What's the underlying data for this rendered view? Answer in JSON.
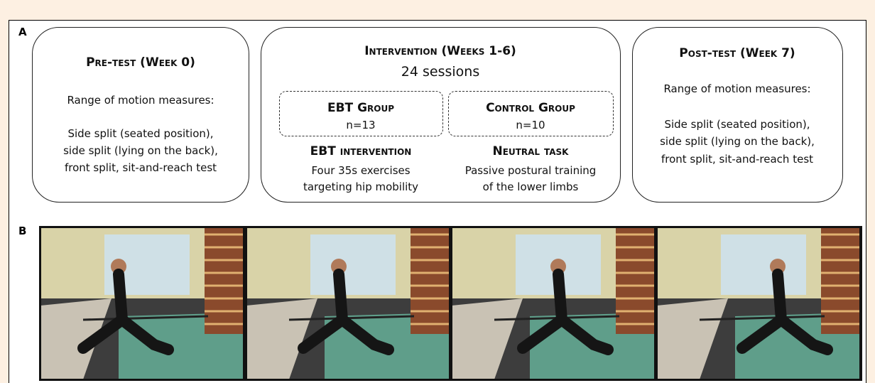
{
  "panel_a": {
    "label": "A",
    "pre_test": {
      "title": "Pre-test (Week 0)",
      "intro": "Range of motion measures:",
      "lines": [
        "Side split (seated position),",
        "side split (lying on the back),",
        "front split, sit-and-reach test"
      ]
    },
    "intervention": {
      "title": "Intervention (Weeks 1-6)",
      "subtitle": "24 sessions",
      "groups": [
        {
          "name": "EBT Group",
          "n": "n=13",
          "task": "EBT intervention",
          "lines": [
            "Four 35s exercises",
            "targeting hip mobility"
          ]
        },
        {
          "name": "Control Group",
          "n": "n=10",
          "task": "Neutral task",
          "lines": [
            "Passive postural training",
            "of the lower limbs"
          ]
        }
      ]
    },
    "post_test": {
      "title": "Post-test (Week 7)",
      "intro": "Range of motion measures:",
      "lines": [
        "Side split (seated position),",
        "side split (lying on the back),",
        "front split, sit-and-reach test"
      ]
    }
  },
  "panel_b": {
    "label": "B"
  }
}
